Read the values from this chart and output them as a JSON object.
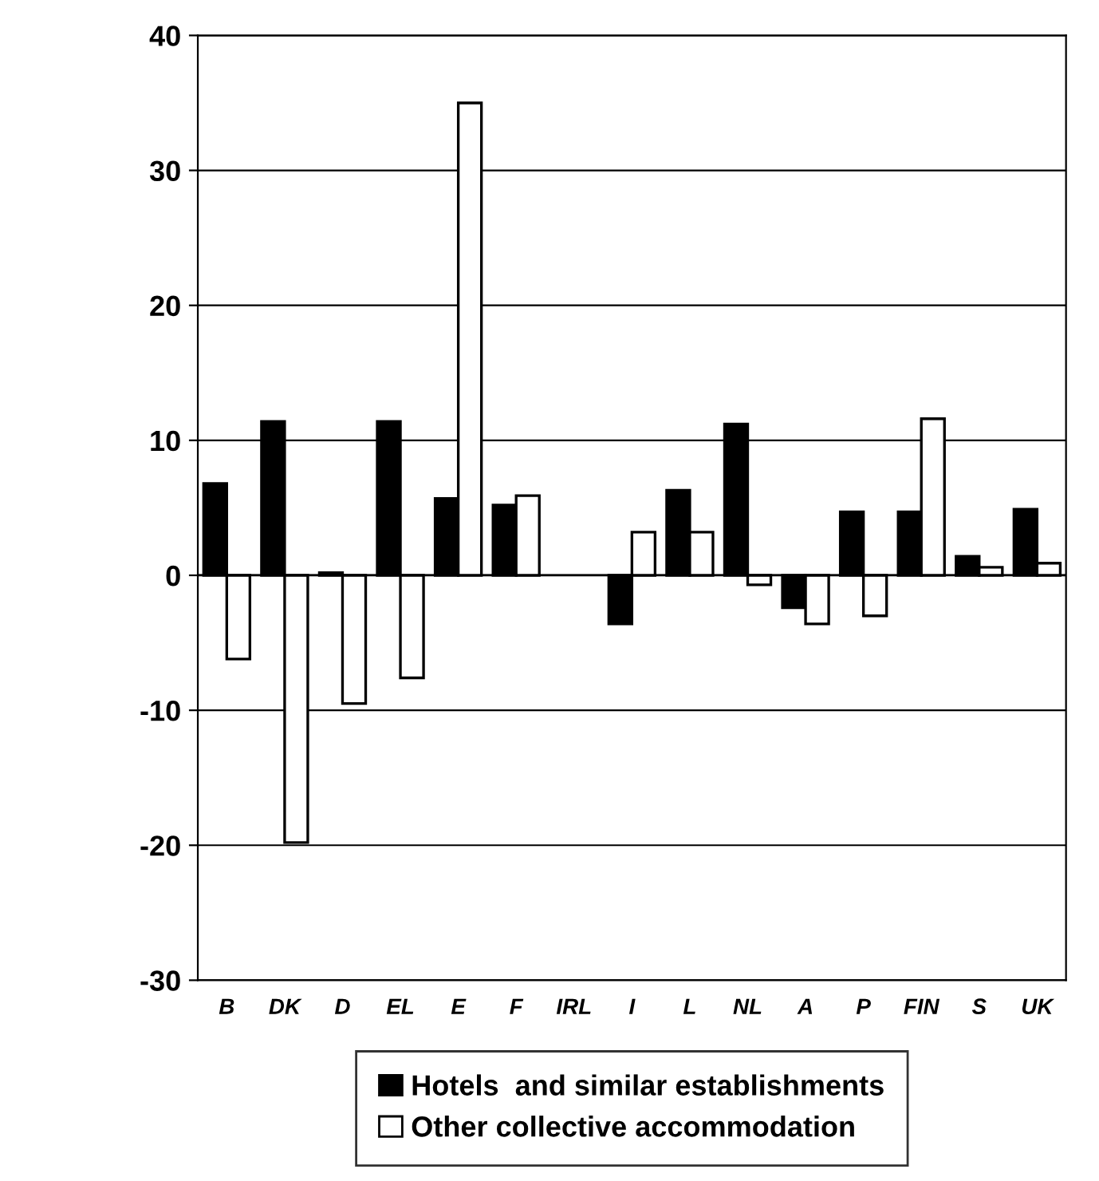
{
  "chart_data": {
    "type": "bar",
    "categories": [
      "B",
      "DK",
      "D",
      "EL",
      "E",
      "F",
      "IRL",
      "I",
      "L",
      "NL",
      "A",
      "P",
      "FIN",
      "S",
      "UK"
    ],
    "series": [
      {
        "name": "Hotels  and similar establishments",
        "color": "#000000",
        "values": [
          6.8,
          11.4,
          0.2,
          11.4,
          5.7,
          5.2,
          null,
          -3.6,
          6.3,
          11.2,
          -2.4,
          4.7,
          4.7,
          1.4,
          4.9
        ]
      },
      {
        "name": "Other collective accommodation",
        "color": "#ffffff",
        "values": [
          -6.2,
          -19.8,
          -9.5,
          -7.6,
          35.0,
          5.9,
          null,
          3.2,
          3.2,
          -0.7,
          -3.6,
          -3.0,
          11.6,
          0.6,
          0.9
        ]
      }
    ],
    "ylim": [
      -30,
      40
    ],
    "yticks": [
      -30,
      -20,
      -10,
      0,
      10,
      20,
      30,
      40
    ],
    "grid": "y",
    "legend": "bottom"
  }
}
